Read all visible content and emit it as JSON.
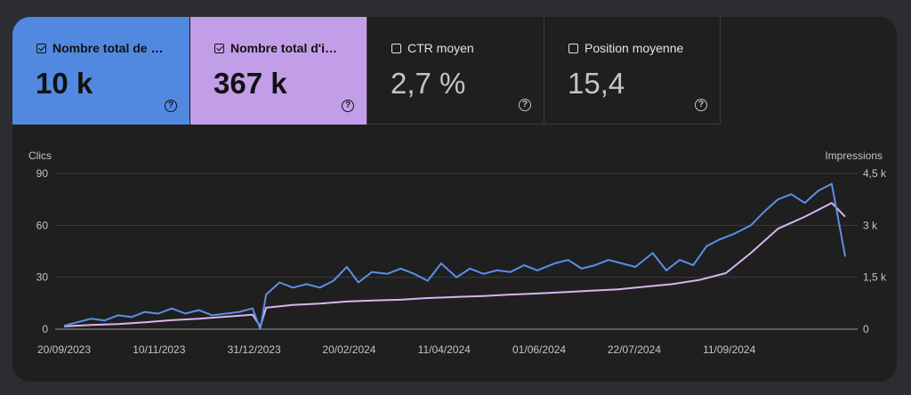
{
  "metrics": [
    {
      "label": "Nombre total de clics",
      "display_label": "Nombre total de c...",
      "value": "10 k",
      "checked": true,
      "color": "#5189e0"
    },
    {
      "label": "Nombre total d'impressions",
      "display_label": "Nombre total d'im...",
      "value": "367 k",
      "checked": true,
      "color": "#c39ee8"
    },
    {
      "label": "CTR moyen",
      "display_label": "CTR moyen",
      "value": "2,7 %",
      "checked": false
    },
    {
      "label": "Position moyenne",
      "display_label": "Position moyenne",
      "value": "15,4",
      "checked": false
    }
  ],
  "chart_data": {
    "type": "line",
    "y_left_label": "Clics",
    "y_right_label": "Impressions",
    "y_left_ticks": [
      "0",
      "30",
      "60",
      "90"
    ],
    "y_right_ticks": [
      "0",
      "1,5 k",
      "3 k",
      "4,5 k"
    ],
    "ylim_left": [
      0,
      90
    ],
    "ylim_right": [
      0,
      4500
    ],
    "x_ticks": [
      "20/09/2023",
      "10/11/2023",
      "31/12/2023",
      "20/02/2024",
      "11/04/2024",
      "01/06/2024",
      "22/07/2024",
      "11/09/2024"
    ],
    "grid": true,
    "series": [
      {
        "axis": "left",
        "color": "#5b8fe6",
        "x": [
          "2023-09-20",
          "2023-09-27",
          "2023-10-04",
          "2023-10-11",
          "2023-10-18",
          "2023-10-25",
          "2023-11-01",
          "2023-11-08",
          "2023-11-15",
          "2023-11-22",
          "2023-11-29",
          "2023-12-06",
          "2023-12-13",
          "2023-12-20",
          "2023-12-27",
          "2023-12-31",
          "2024-01-03",
          "2024-01-10",
          "2024-01-17",
          "2024-01-24",
          "2024-01-31",
          "2024-02-07",
          "2024-02-14",
          "2024-02-20",
          "2024-02-27",
          "2024-03-06",
          "2024-03-13",
          "2024-03-20",
          "2024-03-27",
          "2024-04-03",
          "2024-04-11",
          "2024-04-18",
          "2024-04-25",
          "2024-05-02",
          "2024-05-09",
          "2024-05-16",
          "2024-05-23",
          "2024-06-01",
          "2024-06-08",
          "2024-06-15",
          "2024-06-22",
          "2024-06-29",
          "2024-07-06",
          "2024-07-13",
          "2024-07-22",
          "2024-07-29",
          "2024-08-05",
          "2024-08-12",
          "2024-08-19",
          "2024-08-26",
          "2024-09-02",
          "2024-09-11",
          "2024-09-18",
          "2024-09-25",
          "2024-10-02",
          "2024-10-09",
          "2024-10-16",
          "2024-10-23",
          "2024-10-30"
        ],
        "values": [
          2,
          4,
          6,
          5,
          8,
          7,
          10,
          9,
          12,
          9,
          11,
          8,
          9,
          10,
          12,
          0,
          20,
          27,
          24,
          26,
          24,
          28,
          36,
          27,
          33,
          32,
          35,
          32,
          28,
          38,
          30,
          35,
          32,
          34,
          33,
          37,
          34,
          38,
          40,
          35,
          37,
          40,
          38,
          36,
          44,
          34,
          40,
          37,
          48,
          52,
          55,
          60,
          68,
          75,
          78,
          73,
          80,
          84,
          42
        ]
      },
      {
        "axis": "right",
        "color": "#d7b5f0",
        "x": [
          "2023-09-20",
          "2023-10-04",
          "2023-10-18",
          "2023-11-01",
          "2023-11-15",
          "2023-11-29",
          "2023-12-13",
          "2023-12-27",
          "2023-12-31",
          "2024-01-03",
          "2024-01-17",
          "2024-01-31",
          "2024-02-14",
          "2024-02-28",
          "2024-03-13",
          "2024-03-27",
          "2024-04-11",
          "2024-04-25",
          "2024-05-09",
          "2024-05-23",
          "2024-06-06",
          "2024-06-20",
          "2024-07-04",
          "2024-07-18",
          "2024-08-01",
          "2024-08-15",
          "2024-08-29",
          "2024-09-11",
          "2024-09-25",
          "2024-10-09",
          "2024-10-23",
          "2024-10-30"
        ],
        "values": [
          80,
          120,
          150,
          200,
          260,
          300,
          360,
          420,
          80,
          620,
          700,
          740,
          800,
          830,
          850,
          900,
          930,
          960,
          1000,
          1030,
          1070,
          1110,
          1150,
          1230,
          1300,
          1420,
          1620,
          2200,
          2900,
          3250,
          3650,
          3250
        ]
      }
    ]
  }
}
